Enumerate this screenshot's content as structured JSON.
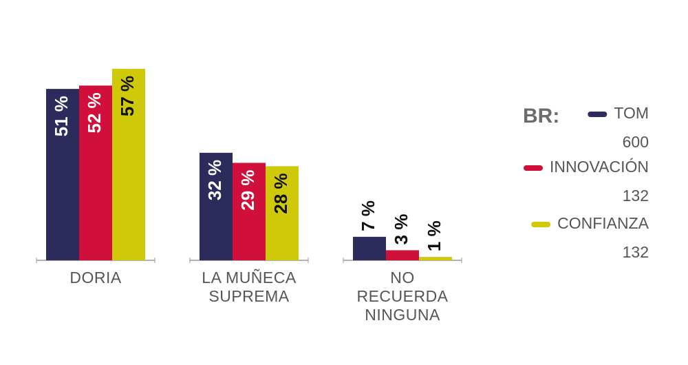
{
  "chart_data": {
    "type": "bar",
    "categories": [
      "DORIA",
      "LA MUÑECA SUPREMA",
      "NO RECUERDA NINGUNA"
    ],
    "series": [
      {
        "name": "TOM",
        "color": "#2d2a5c",
        "base": 600,
        "values": [
          51,
          32,
          7
        ],
        "value_labels": [
          "51 %",
          "32 %",
          "7 %"
        ]
      },
      {
        "name": "INNOVACIÓN",
        "color": "#d0103a",
        "base": 132,
        "values": [
          52,
          29,
          3
        ],
        "value_labels": [
          "52 %",
          "29 %",
          "3 %"
        ]
      },
      {
        "name": "CONFIANZA",
        "color": "#cfc90a",
        "base": 132,
        "values": [
          57,
          28,
          1
        ],
        "value_labels": [
          "57 %",
          "28 %",
          "1 %"
        ]
      }
    ],
    "legend_title": "BR:"
  }
}
